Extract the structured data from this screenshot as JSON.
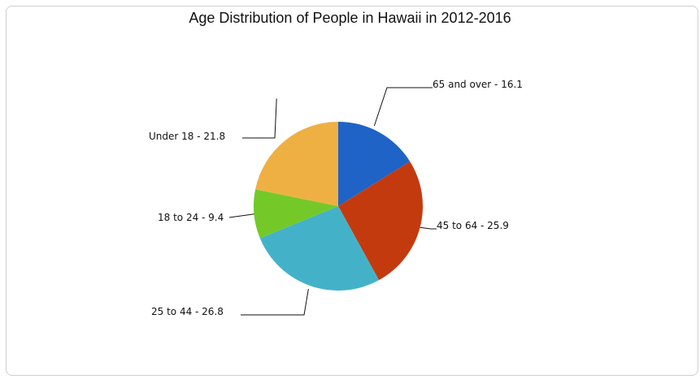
{
  "chart_data": {
    "type": "pie",
    "title": "Age Distribution of People in Hawaii in 2012-2016",
    "slices": [
      {
        "label": "65 and over",
        "value": 16.1,
        "text": "65 and over - 16.1",
        "color": "#1f63c6"
      },
      {
        "label": "45 to 64",
        "value": 25.9,
        "text": "45 to 64 - 25.9",
        "color": "#c43a0f"
      },
      {
        "label": "25 to 44",
        "value": 26.8,
        "text": "25 to 44 - 26.8",
        "color": "#43b2c8"
      },
      {
        "label": "18 to 24",
        "value": 9.4,
        "text": "18 to 24 - 9.4",
        "color": "#74c928"
      },
      {
        "label": "Under 18",
        "value": 21.8,
        "text": "Under 18 - 21.8",
        "color": "#eeb043"
      }
    ],
    "legend": "none"
  }
}
